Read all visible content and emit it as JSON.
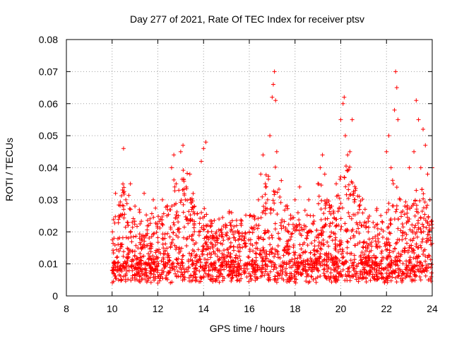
{
  "chart_data": {
    "type": "scatter",
    "title": "Day 277 of 2021, Rate Of TEC Index for receiver ptsv",
    "xlabel": "GPS time / hours",
    "ylabel": "ROTI / TECUs",
    "xlim": [
      8,
      24
    ],
    "ylim": [
      0,
      0.08
    ],
    "grid": true,
    "marker": "plus",
    "color": "#ff0000",
    "x_ticks": [
      8,
      10,
      12,
      14,
      16,
      18,
      20,
      22,
      24
    ],
    "x_tick_labels": [
      "8",
      "10",
      "12",
      "14",
      "16",
      "18",
      "20",
      "22",
      "24"
    ],
    "y_ticks": [
      0,
      0.01,
      0.02,
      0.03,
      0.04,
      0.05,
      0.06,
      0.07,
      0.08
    ],
    "y_tick_labels": [
      "0",
      "0.01",
      "0.02",
      "0.03",
      "0.04",
      "0.05",
      "0.06",
      "0.07",
      "0.08"
    ],
    "series": [
      {
        "name": "ROTI",
        "x": [
          10.0,
          10.08,
          10.15,
          10.2,
          10.3,
          10.4,
          10.5,
          10.6,
          10.7,
          10.8,
          10.9,
          11.0,
          11.2,
          11.4,
          11.6,
          11.8,
          12.0,
          12.2,
          12.4,
          12.6,
          12.7,
          12.8,
          12.9,
          13.0,
          13.1,
          13.2,
          13.4,
          13.6,
          13.8,
          13.9,
          14.0,
          14.1,
          14.2,
          14.4,
          14.6,
          14.8,
          15.0,
          15.2,
          15.4,
          15.6,
          15.8,
          16.0,
          16.2,
          16.4,
          16.5,
          16.6,
          16.7,
          16.8,
          16.9,
          17.0,
          17.05,
          17.1,
          17.15,
          17.2,
          17.4,
          17.6,
          17.8,
          18.0,
          18.2,
          18.4,
          18.6,
          18.8,
          19.0,
          19.1,
          19.2,
          19.3,
          19.4,
          19.6,
          19.8,
          20.0,
          20.1,
          20.15,
          20.2,
          20.3,
          20.4,
          20.5,
          20.6,
          20.8,
          21.0,
          21.2,
          21.4,
          21.6,
          21.8,
          22.0,
          22.1,
          22.2,
          22.3,
          22.35,
          22.4,
          22.45,
          22.5,
          22.6,
          22.8,
          23.0,
          23.2,
          23.3,
          23.4,
          23.5,
          23.6,
          23.7,
          23.8,
          23.9,
          24.0,
          10.5,
          11.0,
          12.0,
          13.0,
          14.5,
          15.5,
          16.5,
          17.5,
          18.5,
          19.5,
          20.5,
          21.5,
          22.5,
          23.5,
          11.5,
          12.5,
          13.5,
          15.0,
          18.0,
          21.0,
          23.0,
          10.3,
          12.3,
          14.3,
          16.3,
          19.3,
          22.8,
          23.8
        ],
        "y": [
          0.008,
          0.018,
          0.032,
          0.012,
          0.025,
          0.016,
          0.046,
          0.03,
          0.022,
          0.035,
          0.014,
          0.028,
          0.018,
          0.032,
          0.022,
          0.03,
          0.008,
          0.03,
          0.025,
          0.04,
          0.044,
          0.035,
          0.025,
          0.045,
          0.047,
          0.03,
          0.038,
          0.028,
          0.02,
          0.042,
          0.046,
          0.048,
          0.02,
          0.015,
          0.018,
          0.012,
          0.01,
          0.022,
          0.012,
          0.015,
          0.018,
          0.02,
          0.025,
          0.03,
          0.038,
          0.044,
          0.035,
          0.03,
          0.05,
          0.062,
          0.066,
          0.07,
          0.061,
          0.045,
          0.036,
          0.028,
          0.024,
          0.03,
          0.034,
          0.022,
          0.03,
          0.025,
          0.035,
          0.04,
          0.044,
          0.038,
          0.03,
          0.028,
          0.035,
          0.055,
          0.06,
          0.062,
          0.05,
          0.044,
          0.045,
          0.055,
          0.03,
          0.028,
          0.022,
          0.02,
          0.018,
          0.015,
          0.014,
          0.045,
          0.05,
          0.04,
          0.035,
          0.058,
          0.07,
          0.065,
          0.055,
          0.03,
          0.028,
          0.04,
          0.045,
          0.061,
          0.055,
          0.04,
          0.052,
          0.047,
          0.038,
          0.03,
          0.04,
          0.006,
          0.005,
          0.004,
          0.006,
          0.005,
          0.005,
          0.006,
          0.005,
          0.006,
          0.005,
          0.006,
          0.005,
          0.006,
          0.005,
          0.01,
          0.012,
          0.011,
          0.009,
          0.01,
          0.012,
          0.011,
          0.014,
          0.013,
          0.012,
          0.011,
          0.013,
          0.014,
          0.012
        ]
      }
    ]
  }
}
